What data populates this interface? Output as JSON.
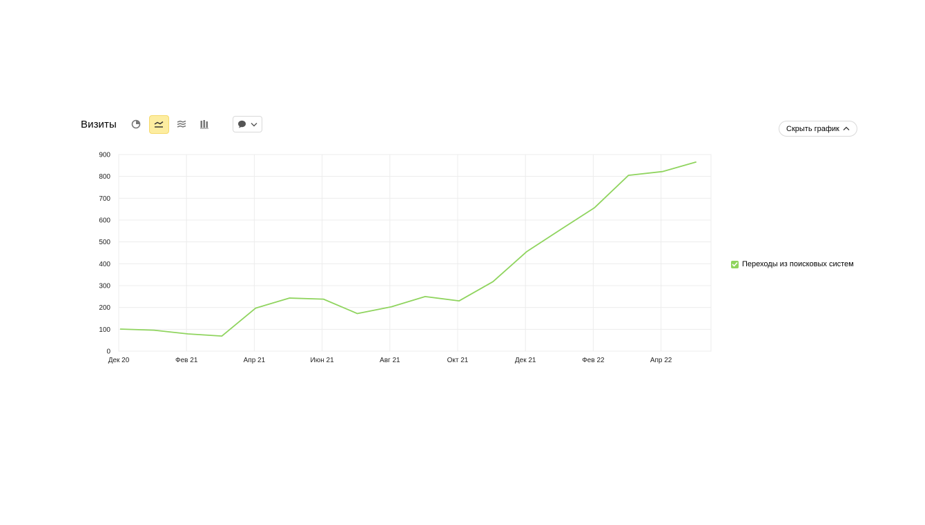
{
  "header": {
    "title": "Визиты",
    "hide_chart_label": "Скрыть график"
  },
  "colors": {
    "series": "#8fd45e",
    "active_button": "#fdeda0",
    "grid": "#ececec"
  },
  "chart_data": {
    "type": "line",
    "title": "",
    "xlabel": "",
    "ylabel": "",
    "ylim": [
      0,
      900
    ],
    "yticks": [
      "0",
      "100",
      "200",
      "300",
      "400",
      "500",
      "600",
      "700",
      "800",
      "900"
    ],
    "x_tick_labels": [
      "Дек 20",
      "Фев 21",
      "Апр 21",
      "Июн 21",
      "Авг 21",
      "Окт 21",
      "Дек 21",
      "Фев 22",
      "Апр 22"
    ],
    "categories": [
      "2020-12",
      "2021-01",
      "2021-02",
      "2021-03",
      "2021-04",
      "2021-05",
      "2021-06",
      "2021-07",
      "2021-08",
      "2021-09",
      "2021-10",
      "2021-11",
      "2021-12",
      "2022-01",
      "2022-02",
      "2022-03",
      "2022-04",
      "2022-05"
    ],
    "series": [
      {
        "name": "Переходы из поисковых систем",
        "values": [
          101,
          96,
          79,
          69,
          197,
          243,
          238,
          172,
          203,
          250,
          230,
          318,
          456,
          557,
          657,
          805,
          822,
          866
        ]
      }
    ],
    "grid": true,
    "legend_position": "right"
  }
}
